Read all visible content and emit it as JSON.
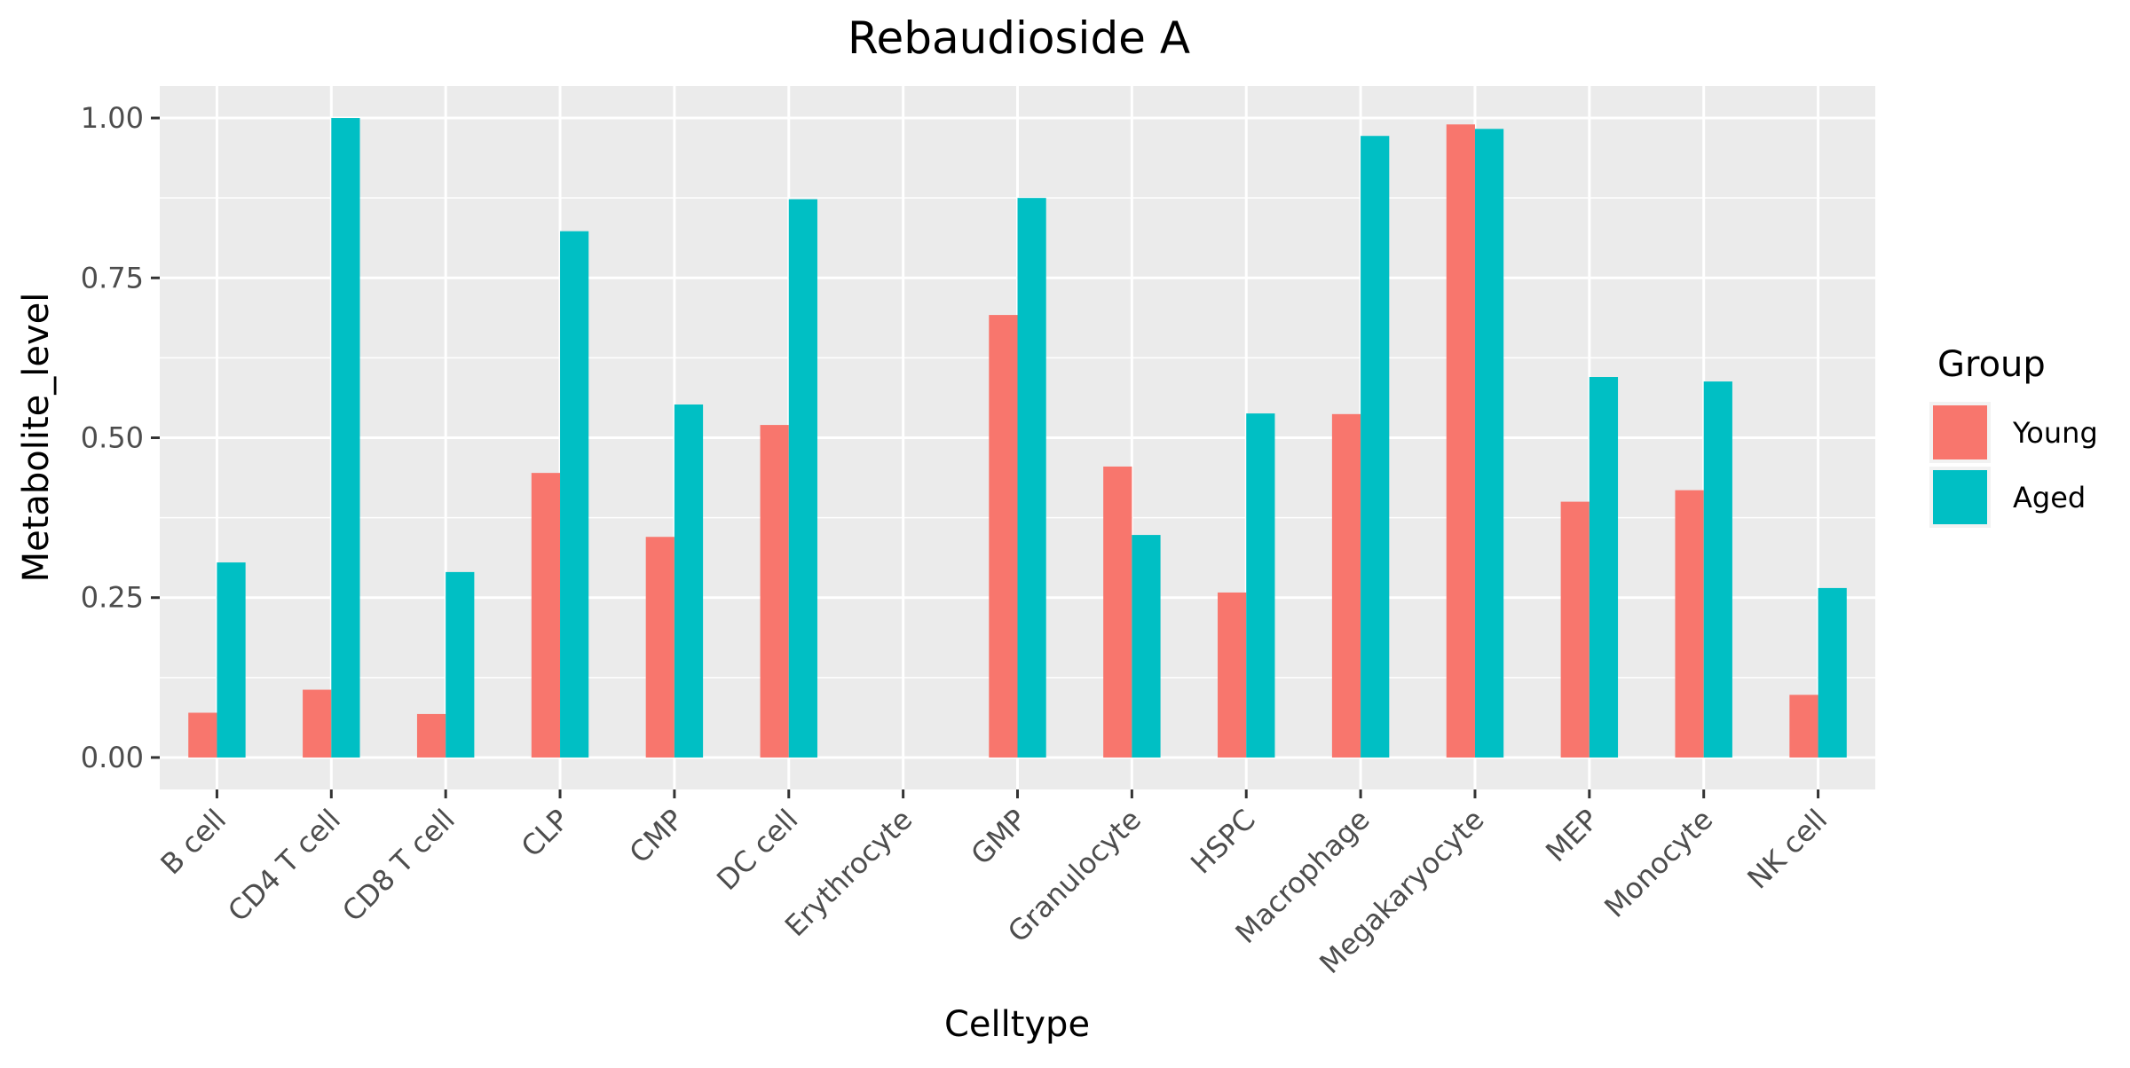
{
  "chart_data": {
    "type": "bar",
    "title": "Rebaudioside A",
    "xlabel": "Celltype",
    "ylabel": "Metabolite_level",
    "ylim": [
      -0.05,
      1.05
    ],
    "yticks": [
      0.0,
      0.25,
      0.5,
      0.75,
      1.0
    ],
    "ytick_labels": [
      "0.00",
      "0.25",
      "0.50",
      "0.75",
      "1.00"
    ],
    "grid": true,
    "legend": {
      "title": "Group",
      "position": "right"
    },
    "categories": [
      "B cell",
      "CD4 T cell",
      "CD8 T cell",
      "CLP",
      "CMP",
      "DC cell",
      "Erythrocyte",
      "GMP",
      "Granulocyte",
      "HSPC",
      "Macrophage",
      "Megakaryocyte",
      "MEP",
      "Monocyte",
      "NK cell"
    ],
    "series": [
      {
        "name": "Young",
        "color": "#F8766D",
        "values": [
          0.07,
          0.106,
          0.068,
          0.445,
          0.345,
          0.52,
          0.0,
          0.692,
          0.455,
          0.258,
          0.537,
          0.99,
          0.4,
          0.418,
          0.098
        ]
      },
      {
        "name": "Aged",
        "color": "#00BFC4",
        "values": [
          0.305,
          1.0,
          0.29,
          0.823,
          0.552,
          0.873,
          0.0,
          0.875,
          0.348,
          0.538,
          0.972,
          0.983,
          0.595,
          0.588,
          0.265
        ]
      }
    ]
  }
}
